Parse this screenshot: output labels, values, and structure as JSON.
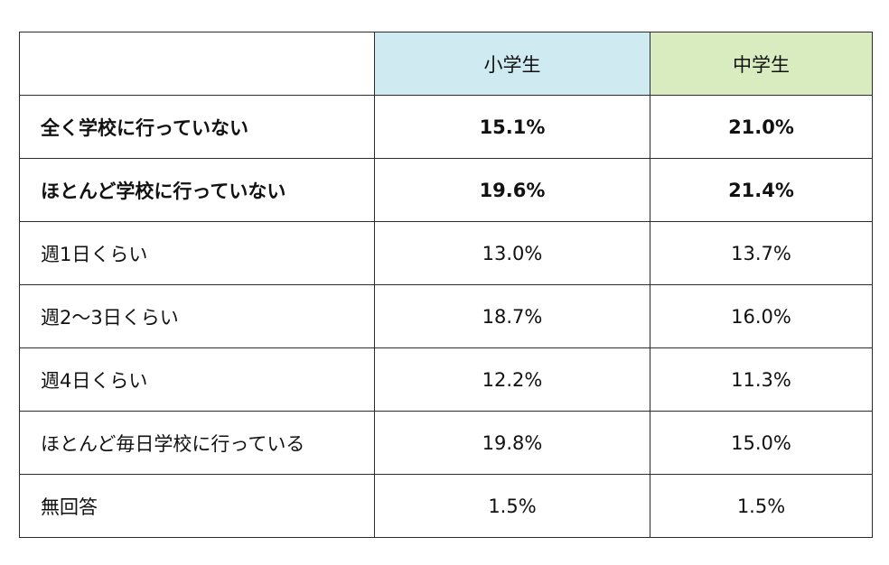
{
  "header": {
    "corner": "",
    "col_elementary": "小学生",
    "col_middle": "中学生",
    "elementary_bg": "#cfeaf1",
    "middle_bg": "#d8ecbf"
  },
  "rows": [
    {
      "label": "全く学校に行っていない",
      "elementary": "15.1%",
      "middle": "21.0%",
      "bold": true
    },
    {
      "label": "ほとんど学校に行っていない",
      "elementary": "19.6%",
      "middle": "21.4%",
      "bold": true
    },
    {
      "label": "週1日くらい",
      "elementary": "13.0%",
      "middle": "13.7%",
      "bold": false
    },
    {
      "label": "週2〜3日くらい",
      "elementary": "18.7%",
      "middle": "16.0%",
      "bold": false
    },
    {
      "label": "週4日くらい",
      "elementary": "12.2%",
      "middle": "11.3%",
      "bold": false
    },
    {
      "label": "ほとんど毎日学校に行っている",
      "elementary": "19.8%",
      "middle": "15.0%",
      "bold": false
    },
    {
      "label": "無回答",
      "elementary": "1.5%",
      "middle": "1.5%",
      "bold": false
    }
  ]
}
